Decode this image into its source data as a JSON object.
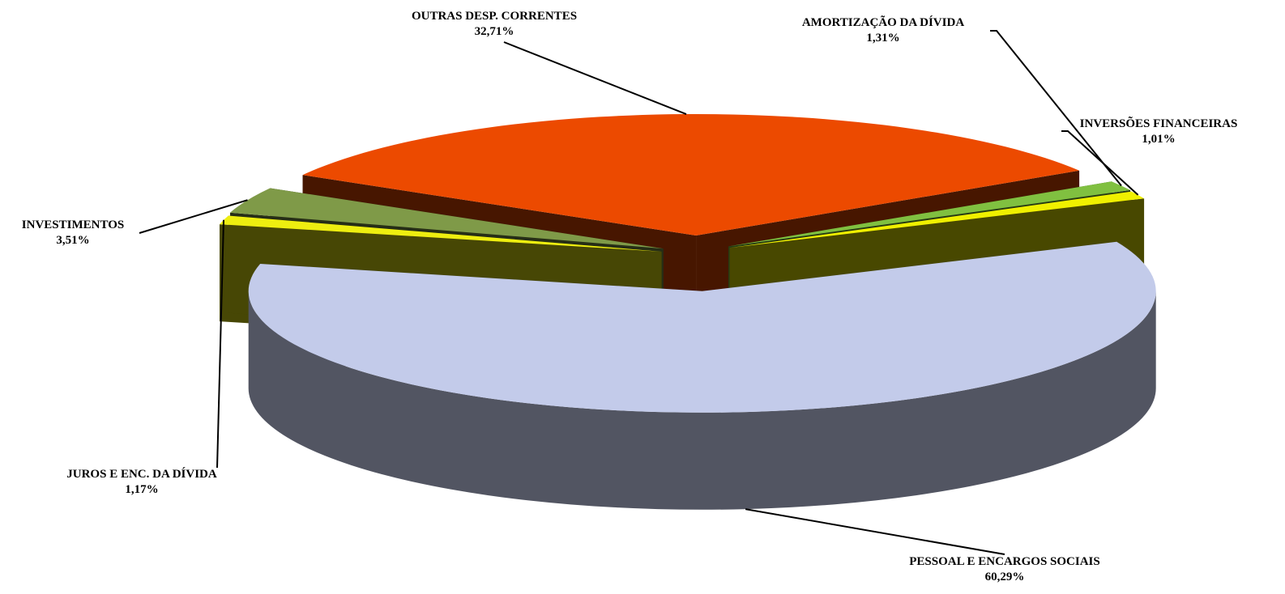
{
  "chart_data": {
    "type": "pie3d",
    "categories": [
      "PESSOAL E ENCARGOS SOCIAIS",
      "JUROS E ENC. DA DÍVIDA",
      "INVESTIMENTOS",
      "OUTRAS DESP. CORRENTES",
      "AMORTIZAÇÃO DA DÍVIDA",
      "INVERSÕES FINANCEIRAS"
    ],
    "values": [
      60.29,
      1.17,
      3.51,
      32.71,
      1.31,
      1.01
    ],
    "value_labels": [
      "60,29%",
      "1,17%",
      "3,51%",
      "32,71%",
      "1,31%",
      "1,01%"
    ],
    "colors": [
      "#c3cbea",
      "#eeee10",
      "#7f9a48",
      "#ec4a00",
      "#80c040",
      "#f0f000"
    ]
  }
}
